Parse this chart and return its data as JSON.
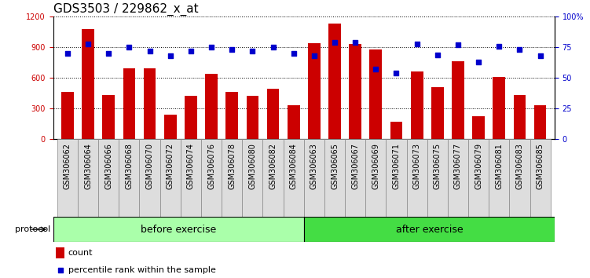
{
  "title": "GDS3503 / 229862_x_at",
  "categories": [
    "GSM306062",
    "GSM306064",
    "GSM306066",
    "GSM306068",
    "GSM306070",
    "GSM306072",
    "GSM306074",
    "GSM306076",
    "GSM306078",
    "GSM306080",
    "GSM306082",
    "GSM306084",
    "GSM306063",
    "GSM306065",
    "GSM306067",
    "GSM306069",
    "GSM306071",
    "GSM306073",
    "GSM306075",
    "GSM306077",
    "GSM306079",
    "GSM306081",
    "GSM306083",
    "GSM306085"
  ],
  "bar_values": [
    460,
    1080,
    430,
    690,
    690,
    240,
    420,
    640,
    460,
    420,
    490,
    330,
    940,
    1130,
    930,
    880,
    170,
    660,
    510,
    760,
    220,
    610,
    430,
    330
  ],
  "percentile_values": [
    70,
    78,
    70,
    75,
    72,
    68,
    72,
    75,
    73,
    72,
    75,
    70,
    68,
    79,
    79,
    57,
    54,
    78,
    69,
    77,
    63,
    76,
    73,
    68
  ],
  "before_exercise_count": 12,
  "after_exercise_count": 12,
  "bar_color": "#CC0000",
  "dot_color": "#0000CC",
  "before_color": "#AAFFAA",
  "after_color": "#44DD44",
  "tickbox_color": "#DDDDDD",
  "protocol_label": "protocol",
  "before_label": "before exercise",
  "after_label": "after exercise",
  "legend_count_label": "count",
  "legend_pct_label": "percentile rank within the sample",
  "ylim_left": [
    0,
    1200
  ],
  "ylim_right": [
    0,
    100
  ],
  "yticks_left": [
    0,
    300,
    600,
    900,
    1200
  ],
  "yticks_right": [
    0,
    25,
    50,
    75,
    100
  ],
  "title_fontsize": 11,
  "tick_fontsize": 7,
  "legend_fontsize": 8,
  "protocol_fontsize": 9
}
